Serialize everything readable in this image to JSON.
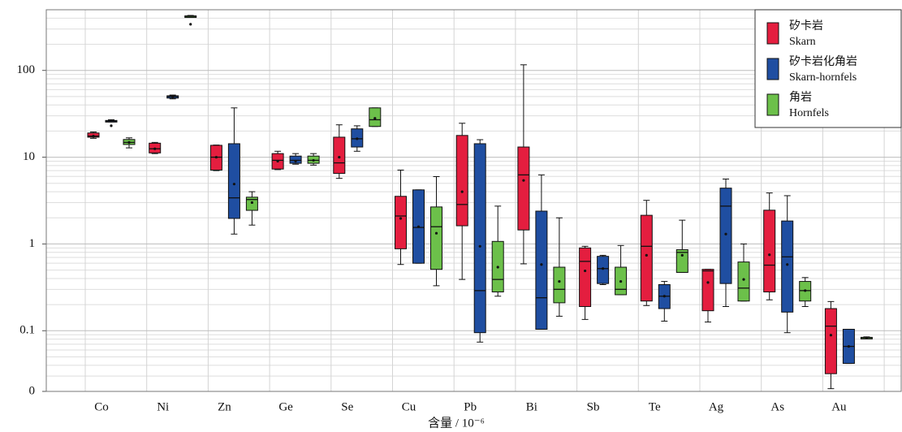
{
  "chart_data": {
    "type": "box",
    "xlabel": "含量 / 10⁻⁶",
    "categories": [
      "Co",
      "Ni",
      "Zn",
      "Ge",
      "Se",
      "Cu",
      "Pb",
      "Bi",
      "Sb",
      "Te",
      "Ag",
      "As",
      "Au"
    ],
    "yscale": "log",
    "ylim": [
      0.02,
      500
    ],
    "yticks": [
      {
        "value": 0.02,
        "label": "0"
      },
      0.1,
      1,
      10,
      100
    ],
    "grid": true,
    "legend": "upper right",
    "series": [
      {
        "name": "矽卡岩",
        "name_en": "Skarn",
        "color": "#e41e3f",
        "min": [
          16.5,
          11,
          7,
          7.2,
          5.7,
          0.58,
          0.39,
          0.59,
          0.135,
          0.195,
          0.126,
          0.227,
          0.0215
        ],
        "q1": [
          17,
          11.2,
          7.1,
          7.3,
          6.5,
          0.88,
          1.62,
          1.45,
          0.19,
          0.22,
          0.17,
          0.28,
          0.032
        ],
        "median": [
          17.5,
          12.5,
          10,
          9.2,
          8.6,
          2.1,
          2.85,
          6.25,
          0.63,
          0.94,
          0.49,
          0.57,
          0.113
        ],
        "q3": [
          19,
          14.5,
          13.7,
          11,
          17,
          3.54,
          17.8,
          13.1,
          0.9,
          2.14,
          0.51,
          2.45,
          0.18
        ],
        "max": [
          19.5,
          14.8,
          13.8,
          11.7,
          23.6,
          7.1,
          24.6,
          116,
          0.94,
          3.18,
          0.51,
          3.87,
          0.217
        ],
        "mean": [
          17.5,
          12.5,
          10,
          9,
          10,
          1.97,
          4,
          5.4,
          0.49,
          0.74,
          0.36,
          0.75,
          0.089
        ]
      },
      {
        "name": "矽卡岩化角岩",
        "name_en": "Skarn-hornfels",
        "color": "#1f4ea1",
        "min": [
          25.5,
          47,
          1.3,
          8.3,
          11.7,
          0.6,
          0.074,
          0.104,
          0.34,
          0.129,
          0.19,
          0.095,
          0.042
        ],
        "q1": [
          25.8,
          48,
          1.97,
          8.5,
          13.1,
          0.6,
          0.095,
          0.104,
          0.35,
          0.18,
          0.35,
          0.164,
          0.042
        ],
        "median": [
          26,
          50,
          3.4,
          9.2,
          16.3,
          1.55,
          0.29,
          0.24,
          0.52,
          0.25,
          2.73,
          0.71,
          0.066
        ],
        "q3": [
          26.5,
          51,
          14.3,
          10.3,
          21.2,
          4.2,
          14.3,
          2.39,
          0.72,
          0.34,
          4.4,
          1.84,
          0.104
        ],
        "max": [
          27,
          52,
          37,
          11,
          23,
          4.2,
          15.9,
          6.25,
          0.74,
          0.37,
          5.6,
          3.6,
          0.104
        ],
        "mean": [
          23,
          50,
          4.9,
          9,
          16.3,
          1.58,
          0.94,
          0.58,
          0.52,
          0.25,
          1.3,
          0.58,
          0.066
        ]
      },
      {
        "name": "角岩",
        "name_en": "Hornfels",
        "color": "#6cc04a",
        "min": [
          12.8,
          410,
          1.65,
          8.1,
          22.6,
          0.33,
          0.25,
          0.147,
          0.26,
          0.47,
          0.22,
          0.19,
          0.081
        ],
        "q1": [
          14,
          415,
          2.44,
          8.5,
          22.6,
          0.51,
          0.28,
          0.21,
          0.26,
          0.47,
          0.22,
          0.22,
          0.082
        ],
        "median": [
          14.8,
          420,
          3.25,
          9.2,
          27,
          1.58,
          0.39,
          0.3,
          0.3,
          0.8,
          0.31,
          0.29,
          0.083
        ],
        "q3": [
          16,
          425,
          3.46,
          10.3,
          37,
          2.67,
          1.07,
          0.54,
          0.54,
          0.86,
          0.62,
          0.37,
          0.084
        ],
        "max": [
          16.7,
          430,
          4,
          11,
          37,
          5.97,
          2.73,
          2,
          0.96,
          1.88,
          1,
          0.41,
          0.085
        ],
        "mean": [
          14.8,
          340,
          3,
          9.2,
          28,
          1.33,
          0.54,
          0.37,
          0.37,
          0.74,
          0.39,
          0.29,
          0.083
        ]
      }
    ]
  }
}
